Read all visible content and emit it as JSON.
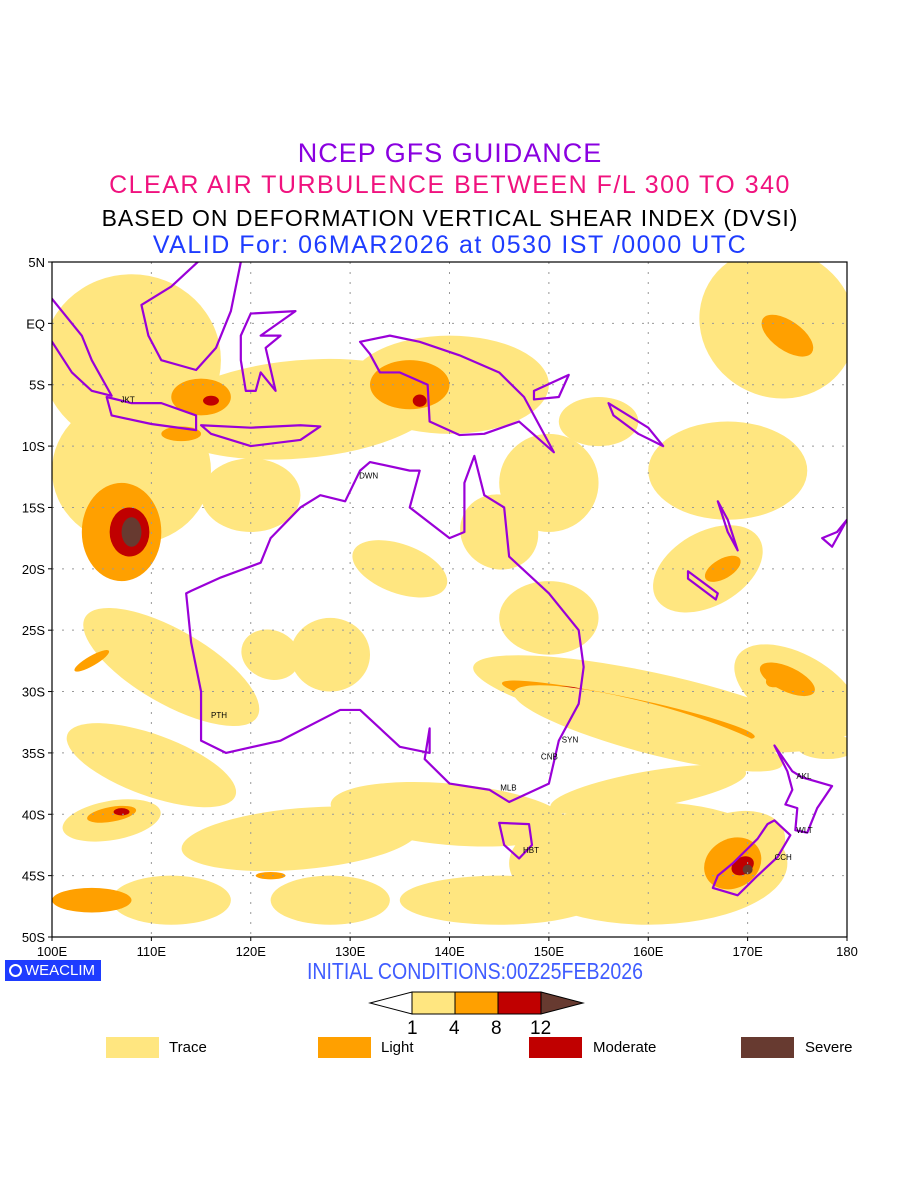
{
  "titles": {
    "line1": "NCEP GFS GUIDANCE",
    "line2": "CLEAR AIR TURBULENCE BETWEEN F/L 300 TO 340",
    "line3": "BASED ON DEFORMATION VERTICAL SHEAR INDEX (DVSI)",
    "line4": "VALID For: 06MAR2026 at 0530 IST /0000 UTC"
  },
  "map": {
    "lat_labels": [
      "5N",
      "EQ",
      "5S",
      "10S",
      "15S",
      "20S",
      "25S",
      "30S",
      "35S",
      "40S",
      "45S",
      "50S"
    ],
    "lon_labels": [
      "100E",
      "110E",
      "120E",
      "130E",
      "140E",
      "150E",
      "160E",
      "170E",
      "180"
    ],
    "lon_range": [
      100,
      180
    ],
    "lat_range": [
      -50,
      5
    ],
    "cities": [
      "JKT",
      "DWN",
      "PTH",
      "SYN",
      "CNB",
      "MLB",
      "HBT",
      "AKL",
      "WLT",
      "CCH"
    ],
    "coast_color": "#9a00d8"
  },
  "logo": "WEACLIM",
  "initial_conditions": "INITIAL CONDITIONS:00Z25FEB2026",
  "colorbar": {
    "ticks": [
      "1",
      "4",
      "8",
      "12"
    ],
    "colors": [
      "#ffe680",
      "#ffa000",
      "#c00000",
      "#673a30"
    ]
  },
  "legend": [
    {
      "label": "Trace",
      "color": "#ffe680"
    },
    {
      "label": "Light",
      "color": "#ffa000"
    },
    {
      "label": "Moderate",
      "color": "#c00000"
    },
    {
      "label": "Severe",
      "color": "#673a30"
    }
  ]
}
